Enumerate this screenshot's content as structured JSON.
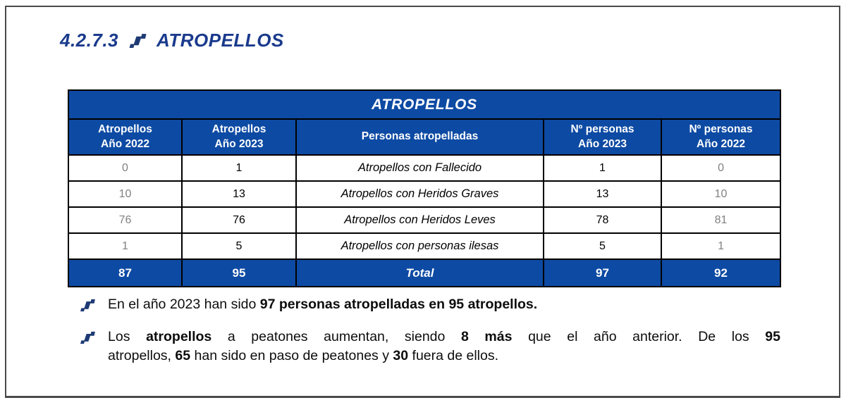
{
  "colors": {
    "table_blue": "#0d4aa3",
    "heading_blue": "#1a3a8c",
    "icon_navy": "#1e3a74",
    "muted_gray": "#808080"
  },
  "heading": {
    "number": "4.2.7.3",
    "title": "ATROPELLOS"
  },
  "table": {
    "title": "ATROPELLOS",
    "columns": [
      "Atropellos\nAño 2022",
      "Atropellos\nAño 2023",
      "Personas atropelladas",
      "Nº personas\nAño 2023",
      "Nº personas\nAño 2022"
    ],
    "rows": [
      [
        "0",
        "1",
        "Atropellos con Fallecido",
        "1",
        "0"
      ],
      [
        "10",
        "13",
        "Atropellos con Heridos Graves",
        "13",
        "10"
      ],
      [
        "76",
        "76",
        "Atropellos con Heridos Leves",
        "78",
        "81"
      ],
      [
        "1",
        "5",
        "Atropellos con personas ilesas",
        "5",
        "1"
      ]
    ],
    "total_row": [
      "87",
      "95",
      "Total",
      "97",
      "92"
    ]
  },
  "notes": [
    {
      "lines": [
        [
          {
            "text": "En el año 2023 han sido ",
            "bold": false
          },
          {
            "text": "97 personas atropelladas en 95 atropellos.",
            "bold": true
          }
        ]
      ]
    },
    {
      "lines": [
        [
          {
            "text": "Los ",
            "bold": false
          },
          {
            "text": "atropellos",
            "bold": true
          },
          {
            "text": " a peatones aumentan, siendo ",
            "bold": false
          },
          {
            "text": "8 más",
            "bold": true
          },
          {
            "text": " que el año anterior. De los ",
            "bold": false
          },
          {
            "text": "95",
            "bold": true
          }
        ],
        [
          {
            "text": "atropellos, ",
            "bold": false
          },
          {
            "text": "65",
            "bold": true
          },
          {
            "text": " han sido en paso de peatones y ",
            "bold": false
          },
          {
            "text": "30",
            "bold": true
          },
          {
            "text": " fuera de ellos.",
            "bold": false
          }
        ]
      ]
    }
  ]
}
